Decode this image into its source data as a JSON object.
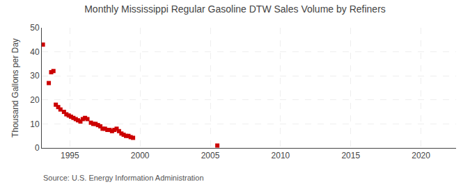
{
  "chart_data": {
    "type": "scatter",
    "title": "Monthly Mississippi Regular Gasoline DTW Sales Volume by Refiners",
    "ylabel": "Thousand Gallons per Day",
    "annotations": [
      "Source: U.S. Energy Information Administration"
    ],
    "x": [
      1993.08,
      1993.5,
      1993.67,
      1993.83,
      1994.0,
      1994.17,
      1994.33,
      1994.58,
      1994.75,
      1994.92,
      1995.08,
      1995.25,
      1995.42,
      1995.58,
      1995.75,
      1995.92,
      1996.08,
      1996.25,
      1996.5,
      1996.67,
      1996.83,
      1997.0,
      1997.17,
      1997.33,
      1997.5,
      1997.67,
      1997.83,
      1998.0,
      1998.17,
      1998.33,
      1998.5,
      1998.67,
      1998.83,
      1999.0,
      1999.17,
      1999.33,
      1999.5,
      2005.5
    ],
    "values": [
      43.0,
      27.0,
      31.5,
      32.0,
      18.0,
      17.0,
      16.0,
      15.0,
      14.0,
      13.5,
      13.0,
      12.5,
      12.0,
      11.5,
      11.0,
      12.0,
      12.5,
      12.0,
      10.5,
      10.0,
      10.0,
      9.5,
      9.0,
      8.0,
      8.0,
      7.5,
      7.5,
      7.0,
      7.5,
      8.0,
      7.0,
      6.0,
      5.5,
      5.0,
      5.0,
      4.5,
      4.2,
      1.0
    ],
    "color": "#cc0000",
    "marker": "square",
    "xlim": [
      1993.0,
      2022.5
    ],
    "xticks": [
      1995,
      2000,
      2005,
      2010,
      2015,
      2020
    ],
    "ylim": [
      0,
      50
    ],
    "yticks": [
      0,
      10,
      20,
      30,
      40,
      50
    ],
    "grid": true
  }
}
